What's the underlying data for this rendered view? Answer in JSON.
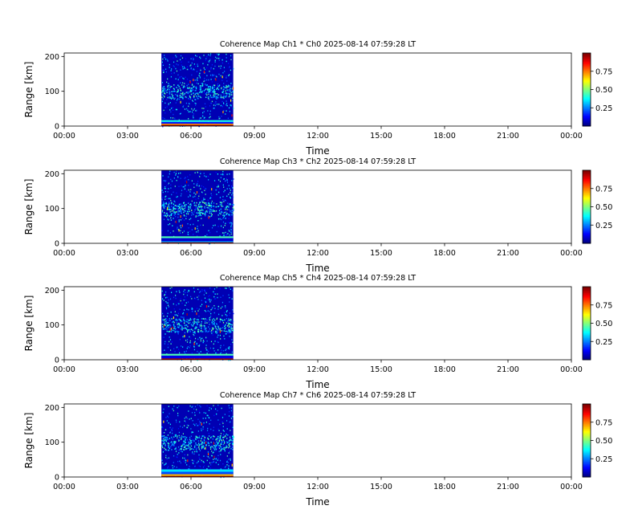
{
  "figure": {
    "time_ticks": [
      "00:00",
      "03:00",
      "06:00",
      "09:00",
      "12:00",
      "15:00",
      "18:00",
      "21:00",
      "00:00"
    ],
    "range_ticks": [
      "0",
      "100",
      "200"
    ],
    "colorbar_ticks": [
      "0.25",
      "0.50",
      "0.75"
    ],
    "colormap": [
      "#00007f",
      "#0000ff",
      "#007fff",
      "#00ffff",
      "#7fff7f",
      "#ffff00",
      "#ff7f00",
      "#ff0000",
      "#7f0000"
    ]
  },
  "chart_data": [
    {
      "type": "heatmap",
      "title": "Coherence Map Ch1 * Ch0 2025-08-14 07:59:28 LT",
      "xlabel": "Time",
      "ylabel": "Range [km]",
      "xlim_hours": [
        0,
        24
      ],
      "ylim_km": [
        0,
        210
      ],
      "data_extent_hours": [
        4.6,
        8.0
      ],
      "colorbar_range": [
        0,
        1
      ],
      "background_level": 0.05,
      "low_range_bands": [
        {
          "range_km": [
            0,
            3
          ],
          "level": 0.98
        },
        {
          "range_km": [
            3,
            7
          ],
          "level": 0.75
        },
        {
          "range_km": [
            7,
            12
          ],
          "level": 0.15
        },
        {
          "range_km": [
            12,
            17
          ],
          "level": 0.4
        }
      ],
      "diffuse_layer_range_km": [
        80,
        120
      ]
    },
    {
      "type": "heatmap",
      "title": "Coherence Map Ch3 * Ch2 2025-08-14 07:59:28 LT",
      "xlabel": "Time",
      "ylabel": "Range [km]",
      "xlim_hours": [
        0,
        24
      ],
      "ylim_km": [
        0,
        210
      ],
      "data_extent_hours": [
        4.6,
        8.0
      ],
      "colorbar_range": [
        0,
        1
      ],
      "background_level": 0.05,
      "low_range_bands": [
        {
          "range_km": [
            0,
            3
          ],
          "level": 0.95
        },
        {
          "range_km": [
            3,
            6
          ],
          "level": 0.3
        },
        {
          "range_km": [
            6,
            15
          ],
          "level": 0.08
        },
        {
          "range_km": [
            15,
            20
          ],
          "level": 0.45
        }
      ],
      "diffuse_layer_range_km": [
        80,
        120
      ]
    },
    {
      "type": "heatmap",
      "title": "Coherence Map Ch5 * Ch4 2025-08-14 07:59:28 LT",
      "xlabel": "Time",
      "ylabel": "Range [km]",
      "xlim_hours": [
        0,
        24
      ],
      "ylim_km": [
        0,
        210
      ],
      "data_extent_hours": [
        4.6,
        8.0
      ],
      "colorbar_range": [
        0,
        1
      ],
      "background_level": 0.05,
      "low_range_bands": [
        {
          "range_km": [
            0,
            4
          ],
          "level": 0.95
        },
        {
          "range_km": [
            4,
            12
          ],
          "level": 0.1
        },
        {
          "range_km": [
            12,
            17
          ],
          "level": 0.45
        }
      ],
      "diffuse_layer_range_km": [
        80,
        120
      ]
    },
    {
      "type": "heatmap",
      "title": "Coherence Map Ch7 * Ch6 2025-08-14 07:59:28 LT",
      "xlabel": "Time",
      "ylabel": "Range [km]",
      "xlim_hours": [
        0,
        24
      ],
      "ylim_km": [
        0,
        210
      ],
      "data_extent_hours": [
        4.6,
        8.0
      ],
      "colorbar_range": [
        0,
        1
      ],
      "background_level": 0.05,
      "low_range_bands": [
        {
          "range_km": [
            0,
            3
          ],
          "level": 0.98
        },
        {
          "range_km": [
            3,
            8
          ],
          "level": 0.7
        },
        {
          "range_km": [
            8,
            15
          ],
          "level": 0.2
        },
        {
          "range_km": [
            15,
            22
          ],
          "level": 0.35
        }
      ],
      "diffuse_layer_range_km": [
        80,
        120
      ]
    }
  ]
}
